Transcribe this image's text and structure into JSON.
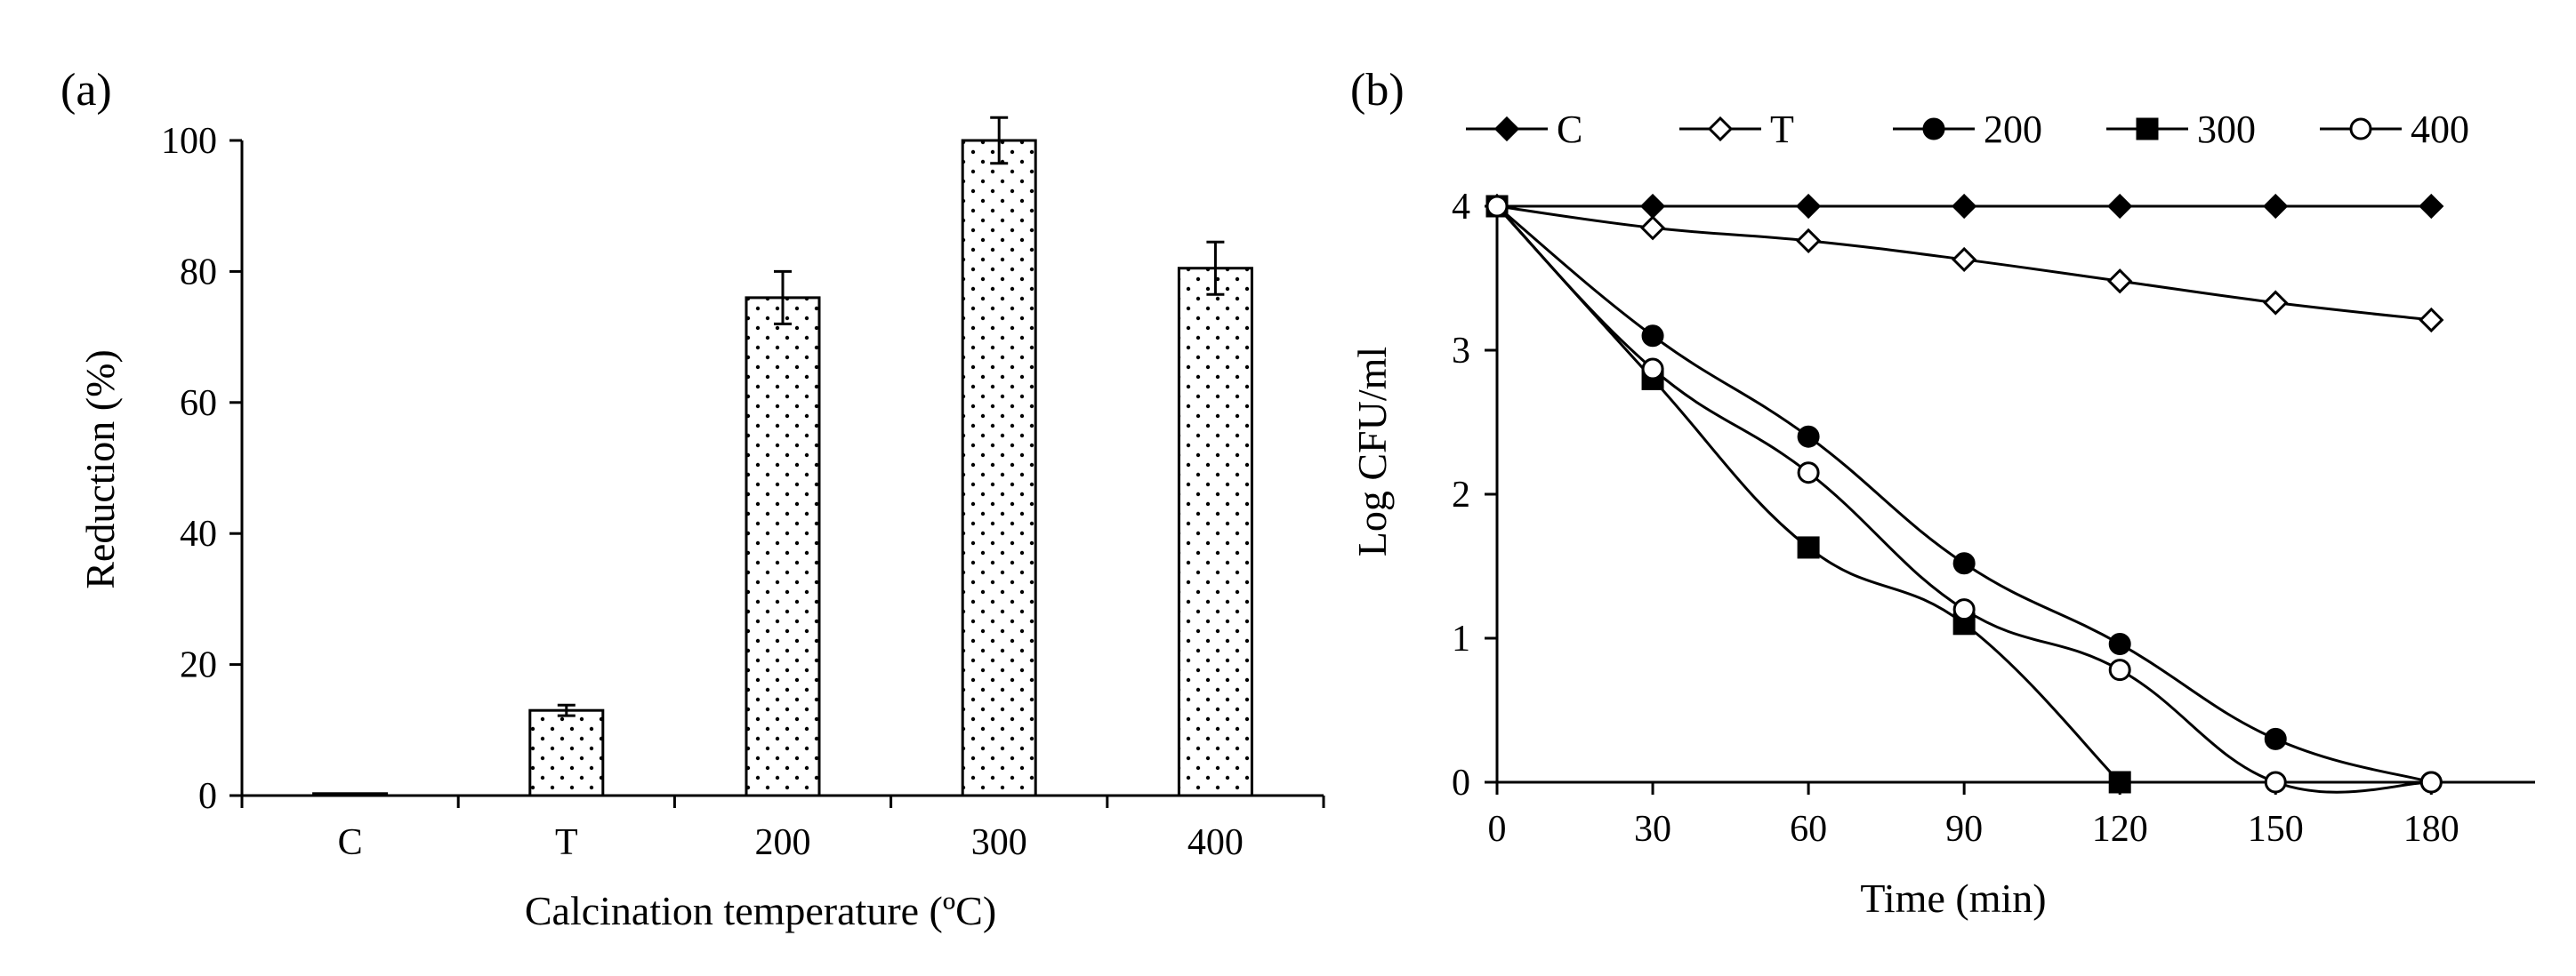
{
  "chart_data": [
    {
      "type": "bar",
      "panel_label": "(a)",
      "title": "",
      "xlabel": "Calcination temperature (ºC)",
      "ylabel": "Reduction (%)",
      "categories": [
        "C",
        "T",
        "200",
        "300",
        "400"
      ],
      "values": [
        0.3,
        13,
        76,
        100,
        80.5
      ],
      "errors": [
        0,
        0.8,
        4,
        3.5,
        4
      ],
      "ylim": [
        0,
        100
      ],
      "yticks": [
        "0",
        "20",
        "40",
        "60",
        "80",
        "100"
      ],
      "bar_fill": "dotted",
      "grid": false
    },
    {
      "type": "line",
      "panel_label": "(b)",
      "title": "",
      "xlabel": "Time (min)",
      "ylabel": "Log CFU/ml",
      "x": [
        0,
        30,
        60,
        90,
        120,
        150,
        180
      ],
      "xticks": [
        "0",
        "30",
        "60",
        "90",
        "120",
        "150",
        "180"
      ],
      "yticks": [
        "0",
        "1",
        "2",
        "3",
        "4"
      ],
      "xlim": [
        0,
        200
      ],
      "ylim": [
        0,
        4
      ],
      "legend_position": "top",
      "grid": false,
      "series": [
        {
          "name": "C",
          "marker": "diamond-filled",
          "points": [
            [
              0,
              4
            ],
            [
              30,
              4
            ],
            [
              60,
              4
            ],
            [
              90,
              4
            ],
            [
              120,
              4
            ],
            [
              150,
              4
            ],
            [
              180,
              4
            ]
          ]
        },
        {
          "name": "T",
          "marker": "diamond-open",
          "points": [
            [
              0,
              4
            ],
            [
              30,
              3.85
            ],
            [
              60,
              3.76
            ],
            [
              90,
              3.63
            ],
            [
              120,
              3.48
            ],
            [
              150,
              3.33
            ],
            [
              180,
              3.21
            ]
          ]
        },
        {
          "name": "200",
          "marker": "circle-filled",
          "points": [
            [
              0,
              4
            ],
            [
              30,
              3.1
            ],
            [
              60,
              2.4
            ],
            [
              90,
              1.52
            ],
            [
              120,
              0.96
            ],
            [
              150,
              0.3
            ],
            [
              180,
              0
            ]
          ]
        },
        {
          "name": "300",
          "marker": "square-filled",
          "points": [
            [
              0,
              4
            ],
            [
              30,
              2.8
            ],
            [
              60,
              1.63
            ],
            [
              90,
              1.1
            ],
            [
              120,
              0
            ]
          ]
        },
        {
          "name": "400",
          "marker": "circle-open",
          "points": [
            [
              0,
              4
            ],
            [
              30,
              2.87
            ],
            [
              60,
              2.15
            ],
            [
              90,
              1.2
            ],
            [
              120,
              0.78
            ],
            [
              150,
              0
            ],
            [
              180,
              0
            ]
          ]
        }
      ]
    }
  ]
}
